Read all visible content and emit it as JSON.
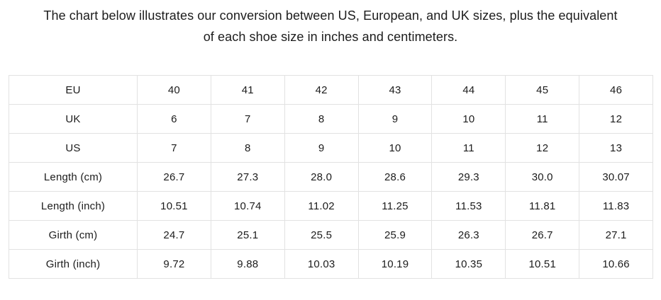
{
  "intro": {
    "line1": "The chart below illustrates our conversion between US, European, and UK sizes, plus the equivalent",
    "line2": "of each shoe size in inches and centimeters."
  },
  "table": {
    "rows": [
      {
        "label": "EU",
        "values": [
          "40",
          "41",
          "42",
          "43",
          "44",
          "45",
          "46"
        ]
      },
      {
        "label": "UK",
        "values": [
          "6",
          "7",
          "8",
          "9",
          "10",
          "11",
          "12"
        ]
      },
      {
        "label": "US",
        "values": [
          "7",
          "8",
          "9",
          "10",
          "11",
          "12",
          "13"
        ]
      },
      {
        "label": "Length (cm)",
        "values": [
          "26.7",
          "27.3",
          "28.0",
          "28.6",
          "29.3",
          "30.0",
          "30.07"
        ]
      },
      {
        "label": "Length (inch)",
        "values": [
          "10.51",
          "10.74",
          "11.02",
          "11.25",
          "11.53",
          "11.81",
          "11.83"
        ]
      },
      {
        "label": "Girth (cm)",
        "values": [
          "24.7",
          "25.1",
          "25.5",
          "25.9",
          "26.3",
          "26.7",
          "27.1"
        ]
      },
      {
        "label": "Girth (inch)",
        "values": [
          "9.72",
          "9.88",
          "10.03",
          "10.19",
          "10.35",
          "10.51",
          "10.66"
        ]
      }
    ]
  },
  "colors": {
    "text": "#1c1c1c",
    "table_border": "#e2e2e2",
    "background": "#ffffff"
  },
  "chart_data": {
    "type": "table",
    "title": "The chart below illustrates our conversion between US, European, and UK sizes, plus the equivalent of each shoe size in inches and centimeters.",
    "row_labels": [
      "EU",
      "UK",
      "US",
      "Length (cm)",
      "Length (inch)",
      "Girth (cm)",
      "Girth (inch)"
    ],
    "rows": [
      [
        40,
        41,
        42,
        43,
        44,
        45,
        46
      ],
      [
        6,
        7,
        8,
        9,
        10,
        11,
        12
      ],
      [
        7,
        8,
        9,
        10,
        11,
        12,
        13
      ],
      [
        26.7,
        27.3,
        28.0,
        28.6,
        29.3,
        30.0,
        30.07
      ],
      [
        10.51,
        10.74,
        11.02,
        11.25,
        11.53,
        11.81,
        11.83
      ],
      [
        24.7,
        25.1,
        25.5,
        25.9,
        26.3,
        26.7,
        27.1
      ],
      [
        9.72,
        9.88,
        10.03,
        10.19,
        10.35,
        10.51,
        10.66
      ]
    ],
    "legend": "none",
    "grid": "full-borders"
  }
}
